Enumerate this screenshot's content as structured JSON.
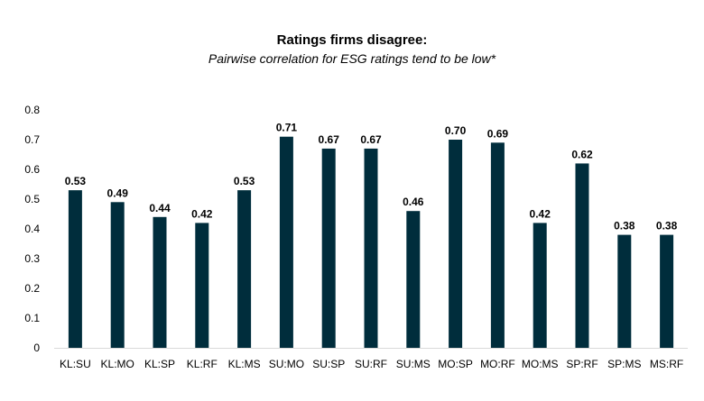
{
  "chart_data": {
    "type": "bar",
    "title": "Ratings firms disagree:",
    "subtitle": "Pairwise correlation for ESG ratings tend to be low*",
    "xlabel": "",
    "ylabel": "",
    "categories": [
      "KL:SU",
      "KL:MO",
      "KL:SP",
      "KL:RF",
      "KL:MS",
      "SU:MO",
      "SU:SP",
      "SU:RF",
      "SU:MS",
      "MO:SP",
      "MO:RF",
      "MO:MS",
      "SP:RF",
      "SP:MS",
      "MS:RF"
    ],
    "values": [
      0.53,
      0.49,
      0.44,
      0.42,
      0.53,
      0.71,
      0.67,
      0.67,
      0.46,
      0.7,
      0.69,
      0.42,
      0.62,
      0.38,
      0.38
    ],
    "data_labels": [
      "0.53",
      "0.49",
      "0.44",
      "0.42",
      "0.53",
      "0.71",
      "0.67",
      "0.67",
      "0.46",
      "0.70",
      "0.69",
      "0.42",
      "0.62",
      "0.38",
      "0.38"
    ],
    "ylim": [
      0,
      0.8
    ],
    "yticks": [
      "0",
      "0.1",
      "0.2",
      "0.3",
      "0.4",
      "0.5",
      "0.6",
      "0.7",
      "0.8"
    ],
    "grid": false,
    "bar_color": "#002d3c",
    "axis_color": "#d9d9d9"
  }
}
